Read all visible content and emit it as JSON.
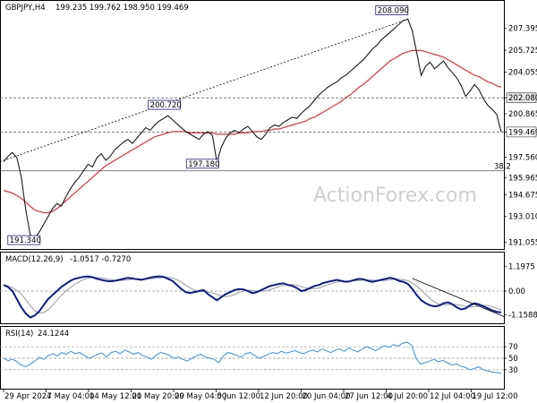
{
  "chart_data": [
    {
      "type": "line",
      "title": "GBPJPY,H4",
      "ohlc_label": "199.235 199.762 198.950 199.469",
      "watermark": "ActionForex.com",
      "series": [
        {
          "name": "price",
          "color": "#1a1a1a",
          "values": [
            197.2,
            197.6,
            197.9,
            197.5,
            196.0,
            193.5,
            191.6,
            191.34,
            191.8,
            192.4,
            193.0,
            193.6,
            194.0,
            193.8,
            194.5,
            195.1,
            195.6,
            196.0,
            196.5,
            197.0,
            196.8,
            197.5,
            197.8,
            197.3,
            197.6,
            198.1,
            198.4,
            198.7,
            198.9,
            198.6,
            199.0,
            199.4,
            199.8,
            199.6,
            200.0,
            200.3,
            200.5,
            200.72,
            200.4,
            200.1,
            199.8,
            199.5,
            199.3,
            199.1,
            198.9,
            199.3,
            199.5,
            199.2,
            197.18,
            198.3,
            199.0,
            199.4,
            199.6,
            199.4,
            199.7,
            199.9,
            199.5,
            199.1,
            198.9,
            199.3,
            199.8,
            200.0,
            199.9,
            200.2,
            200.4,
            200.6,
            200.5,
            200.9,
            201.2,
            201.5,
            201.9,
            202.3,
            202.6,
            202.9,
            203.1,
            203.3,
            203.6,
            203.8,
            204.1,
            204.4,
            204.7,
            205.0,
            205.4,
            205.8,
            206.1,
            206.5,
            206.8,
            207.1,
            207.4,
            207.7,
            208.0,
            208.09,
            207.2,
            205.5,
            203.8,
            204.5,
            204.8,
            204.3,
            204.6,
            204.9,
            204.4,
            204.0,
            203.6,
            203.0,
            202.2,
            202.6,
            203.1,
            202.7,
            202.0,
            201.5,
            201.2,
            200.8,
            199.469
          ]
        },
        {
          "name": "ema",
          "color": "#e0313a",
          "values": [
            195.0,
            194.9,
            194.8,
            194.6,
            194.4,
            194.1,
            193.8,
            193.5,
            193.4,
            193.3,
            193.3,
            193.4,
            193.6,
            193.9,
            194.2,
            194.5,
            194.8,
            195.1,
            195.4,
            195.7,
            196.0,
            196.3,
            196.6,
            196.9,
            197.1,
            197.3,
            197.5,
            197.7,
            197.9,
            198.1,
            198.3,
            198.5,
            198.7,
            198.9,
            199.1,
            199.2,
            199.3,
            199.4,
            199.5,
            199.5,
            199.5,
            199.5,
            199.4,
            199.4,
            199.4,
            199.4,
            199.4,
            199.4,
            199.3,
            199.3,
            199.3,
            199.3,
            199.3,
            199.4,
            199.4,
            199.4,
            199.5,
            199.5,
            199.5,
            199.6,
            199.6,
            199.7,
            199.7,
            199.8,
            199.9,
            200.0,
            200.1,
            200.2,
            200.3,
            200.5,
            200.6,
            200.8,
            201.0,
            201.2,
            201.4,
            201.6,
            201.8,
            202.1,
            202.3,
            202.6,
            202.9,
            203.1,
            203.4,
            203.7,
            204.0,
            204.3,
            204.6,
            204.9,
            205.1,
            205.3,
            205.5,
            205.6,
            205.7,
            205.7,
            205.7,
            205.6,
            205.5,
            205.4,
            205.3,
            205.2,
            205.0,
            204.8,
            204.6,
            204.4,
            204.2,
            204.0,
            203.8,
            203.7,
            203.5,
            203.3,
            203.2,
            203.0,
            202.9
          ]
        }
      ],
      "y_ticks": [
        "207.395",
        "205.725",
        "204.055",
        "202.080",
        "200.865",
        "199.469",
        "197.560",
        "195.965",
        "194.675",
        "193.010",
        "191.055"
      ],
      "ylim": [
        190.8,
        208.6
      ],
      "annotations": [
        "208.090",
        "200.720",
        "197.180",
        "191.340"
      ],
      "hlines": [
        {
          "label": "202.080",
          "value": 202.08
        },
        {
          "label": "199.469",
          "value": 199.469
        },
        {
          "label": "38.2",
          "value": 196.5
        }
      ],
      "trendline_label": ""
    },
    {
      "type": "line",
      "title": "MACD(12,26,9)",
      "values_label": "-1.0517 -0.7270",
      "series": [
        {
          "name": "macd",
          "color": "#0b1c8c",
          "values": [
            0.3,
            0.2,
            0.0,
            -0.4,
            -0.8,
            -1.1,
            -1.3,
            -1.2,
            -1.0,
            -0.7,
            -0.4,
            -0.2,
            0.0,
            0.2,
            0.35,
            0.5,
            0.6,
            0.65,
            0.7,
            0.72,
            0.68,
            0.6,
            0.55,
            0.5,
            0.48,
            0.5,
            0.55,
            0.6,
            0.65,
            0.62,
            0.58,
            0.55,
            0.6,
            0.66,
            0.7,
            0.72,
            0.7,
            0.6,
            0.5,
            0.3,
            0.1,
            -0.05,
            -0.1,
            -0.05,
            0.0,
            0.05,
            -0.15,
            -0.3,
            -0.45,
            -0.3,
            -0.15,
            -0.05,
            0.05,
            0.1,
            0.08,
            0.0,
            -0.1,
            -0.05,
            0.05,
            0.15,
            0.25,
            0.3,
            0.35,
            0.38,
            0.3,
            0.25,
            0.15,
            0.0,
            0.05,
            0.15,
            0.25,
            0.3,
            0.4,
            0.45,
            0.5,
            0.55,
            0.5,
            0.45,
            0.48,
            0.55,
            0.6,
            0.58,
            0.5,
            0.45,
            0.5,
            0.55,
            0.6,
            0.65,
            0.6,
            0.5,
            0.45,
            0.35,
            0.1,
            -0.2,
            -0.45,
            -0.6,
            -0.7,
            -0.75,
            -0.72,
            -0.6,
            -0.55,
            -0.65,
            -0.8,
            -0.9,
            -0.85,
            -0.7,
            -0.6,
            -0.65,
            -0.75,
            -0.85,
            -0.95,
            -1.02,
            -1.05
          ]
        }
      ],
      "y_ticks": [
        "1.1975",
        "0.00",
        "-1.1588"
      ],
      "ylim": [
        -1.45,
        1.45
      ],
      "trendline_label": ""
    },
    {
      "type": "line",
      "title": "RSI(14)",
      "values_label": "24.1244",
      "series": [
        {
          "name": "rsi",
          "color": "#3a8ee6",
          "values": [
            50,
            46,
            48,
            44,
            38,
            35,
            40,
            45,
            52,
            48,
            55,
            58,
            54,
            60,
            57,
            62,
            58,
            60,
            55,
            50,
            53,
            57,
            59,
            52,
            60,
            62,
            58,
            64,
            61,
            57,
            60,
            55,
            52,
            48,
            55,
            60,
            58,
            55,
            50,
            52,
            48,
            45,
            50,
            54,
            57,
            52,
            50,
            48,
            42,
            54,
            60,
            58,
            55,
            52,
            58,
            60,
            55,
            50,
            53,
            57,
            60,
            58,
            62,
            59,
            61,
            63,
            60,
            58,
            62,
            64,
            61,
            66,
            63,
            60,
            64,
            66,
            62,
            68,
            64,
            61,
            66,
            70,
            67,
            63,
            68,
            72,
            69,
            74,
            71,
            76,
            78,
            73,
            50,
            40,
            42,
            45,
            48,
            44,
            46,
            42,
            38,
            40,
            36,
            34,
            30,
            32,
            35,
            30,
            28,
            26,
            25,
            24.1
          ]
        }
      ],
      "y_ticks": [
        "100",
        "70",
        "50",
        "30",
        "0"
      ],
      "ylim": [
        0,
        100
      ]
    }
  ],
  "x_ticks": [
    "29 Apr 2024",
    "7 May 04:00",
    "14 May 12:00",
    "21 May 20:00",
    "29 May 04:00",
    "5 Jun 12:00",
    "12 Jun 20:00",
    "20 Jun 04:00",
    "27 Jun 12:00",
    "4 Jul 20:00",
    "12 Jul 04:00",
    "19 Jul 12:00"
  ],
  "colors": {
    "price": "#1a1a1a",
    "ema": "#e0313a",
    "macd": "#0b1c8c",
    "rsi": "#3a8ee6",
    "trend": "#000000",
    "guide": "#555555"
  }
}
